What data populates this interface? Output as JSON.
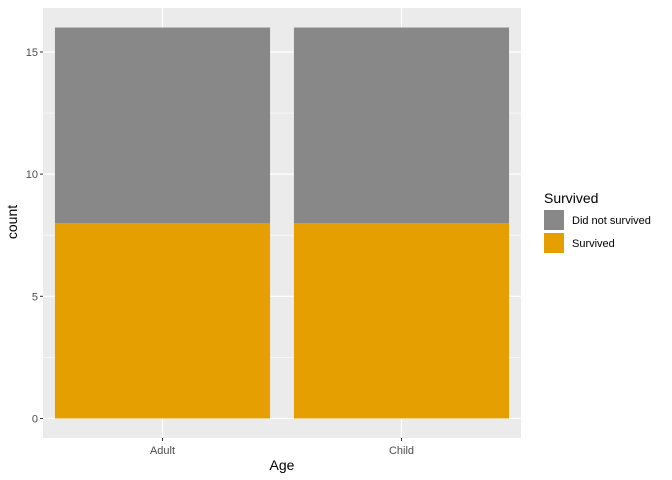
{
  "chart_data": {
    "type": "bar",
    "stacked": true,
    "categories": [
      "Adult",
      "Child"
    ],
    "series": [
      {
        "name": "Survived",
        "values": [
          8,
          8
        ],
        "color": "#E69F00"
      },
      {
        "name": "Did not survived",
        "values": [
          8,
          8
        ],
        "color": "#888888"
      }
    ],
    "xlabel": "Age",
    "ylabel": "count",
    "ylim": [
      -0.8,
      16.8
    ],
    "yticks": [
      0,
      5,
      10,
      15
    ],
    "yticks_minor": [
      2.5,
      7.5,
      12.5
    ],
    "grid": true,
    "panel_background": "#EBEBEB",
    "legend": {
      "title": "Survived",
      "placement": "right",
      "entries": [
        {
          "label": "Did not survived",
          "color": "#888888"
        },
        {
          "label": "Survived",
          "color": "#E69F00"
        }
      ]
    }
  }
}
